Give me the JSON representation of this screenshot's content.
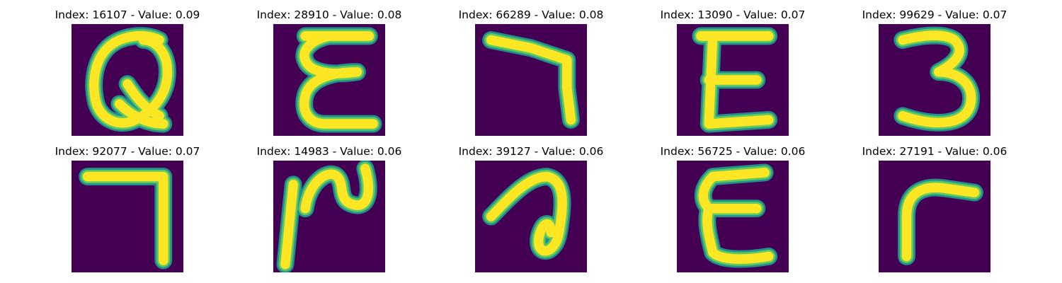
{
  "colors": {
    "background": "#440154",
    "stroke_edge": "#21918c",
    "stroke_mid": "#5ec962",
    "stroke_core": "#fde725"
  },
  "panels": [
    {
      "title": "Index: 16107 - Value: 0.09",
      "glyph": "script Q-like letter"
    },
    {
      "title": "Index: 28910 - Value: 0.08",
      "glyph": "cursive E"
    },
    {
      "title": "Index: 66289 - Value: 0.08",
      "glyph": "hook / mirrored L"
    },
    {
      "title": "Index: 13090 - Value: 0.07",
      "glyph": "E"
    },
    {
      "title": "Index: 99629 - Value: 0.07",
      "glyph": "3"
    },
    {
      "title": "Index: 92077 - Value: 0.07",
      "glyph": "7-like corner"
    },
    {
      "title": "Index: 14983 - Value: 0.06",
      "glyph": "curly stroke with vertical line"
    },
    {
      "title": "Index: 39127 - Value: 0.06",
      "glyph": "loop shape"
    },
    {
      "title": "Index: 56725 - Value: 0.06",
      "glyph": "cursive E"
    },
    {
      "title": "Index: 27191 - Value: 0.06",
      "glyph": "r-like corner"
    }
  ]
}
